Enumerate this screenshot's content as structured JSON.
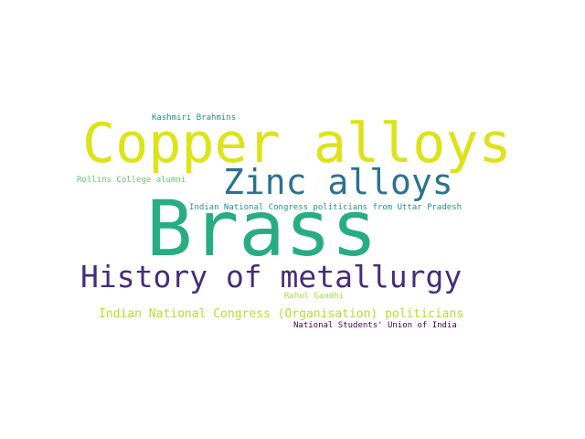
{
  "wordcloud": {
    "words": [
      {
        "text": "Kashmiri Brahmins",
        "color": "#21918c"
      },
      {
        "text": "Copper alloys",
        "color": "#dde318"
      },
      {
        "text": "Rollins College alumni",
        "color": "#5ec962"
      },
      {
        "text": "Zinc alloys",
        "color": "#2c728e"
      },
      {
        "text": "Indian National Congress politicians from Uttar Pradesh",
        "color": "#21918c"
      },
      {
        "text": "Brass",
        "color": "#27ad81"
      },
      {
        "text": "History of metallurgy",
        "color": "#472c7a"
      },
      {
        "text": "Rahul Gandhi",
        "color": "#aadc32"
      },
      {
        "text": "Indian National Congress (Organisation) politicians",
        "color": "#b5de2b"
      },
      {
        "text": "National Students' Union of India",
        "color": "#440154"
      }
    ]
  }
}
